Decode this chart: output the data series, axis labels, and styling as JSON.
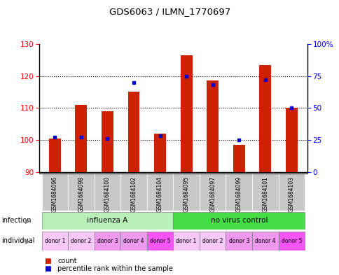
{
  "title": "GDS6063 / ILMN_1770697",
  "samples": [
    "GSM1684096",
    "GSM1684098",
    "GSM1684100",
    "GSM1684102",
    "GSM1684104",
    "GSM1684095",
    "GSM1684097",
    "GSM1684099",
    "GSM1684101",
    "GSM1684103"
  ],
  "count_values": [
    100.5,
    111.0,
    109.0,
    115.0,
    102.0,
    126.5,
    118.5,
    98.5,
    123.5,
    110.0
  ],
  "percentile_values": [
    27,
    27,
    26,
    70,
    28,
    75,
    68,
    25,
    72,
    50
  ],
  "ylim_left": [
    90,
    130
  ],
  "ylim_right": [
    0,
    100
  ],
  "yticks_left": [
    90,
    100,
    110,
    120,
    130
  ],
  "yticks_right": [
    0,
    25,
    50,
    75,
    100
  ],
  "groups": [
    {
      "label": "influenza A",
      "start": 0,
      "end": 5,
      "color": "#b8f0b8"
    },
    {
      "label": "no virus control",
      "start": 5,
      "end": 10,
      "color": "#44dd44"
    }
  ],
  "donors": [
    "donor 1",
    "donor 2",
    "donor 3",
    "donor 4",
    "donor 5",
    "donor 1",
    "donor 2",
    "donor 3",
    "donor 4",
    "donor 5"
  ],
  "donor_colors": [
    "#f8c8f8",
    "#f8c8f8",
    "#ee99ee",
    "#ee99ee",
    "#f855f8",
    "#f8c8f8",
    "#f8c8f8",
    "#ee99ee",
    "#ee99ee",
    "#f855f8"
  ],
  "bar_color": "#cc2200",
  "dot_color": "#0000cc",
  "baseline": 90,
  "sample_bg": "#c8c8c8",
  "grid_yticks": [
    100,
    110,
    120
  ]
}
